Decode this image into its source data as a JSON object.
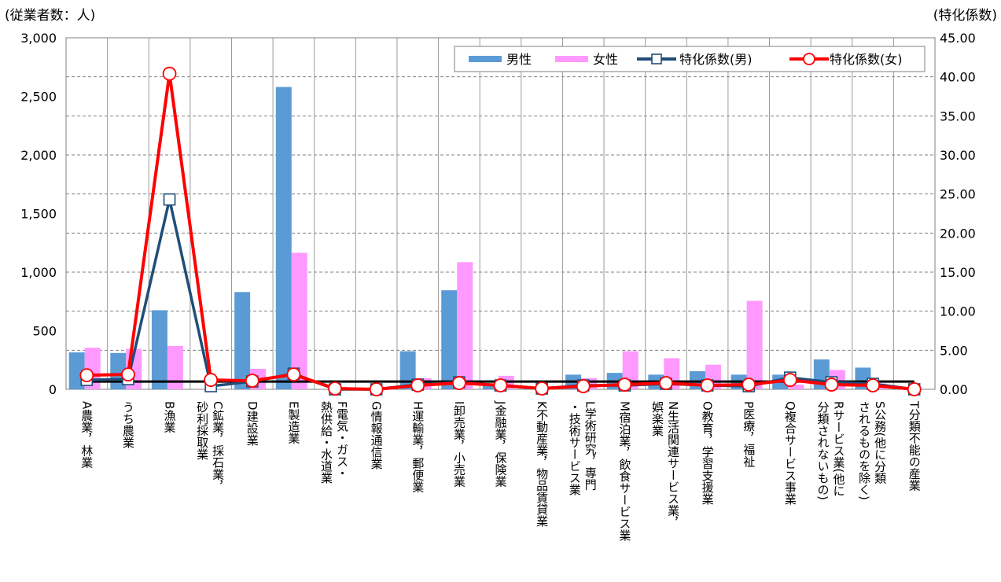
{
  "chart_data": {
    "type": "bar",
    "left_axis_title": "(従業者数：人)",
    "right_axis_title": "(特化係数)",
    "left_ticks": [
      "0",
      "500",
      "1,000",
      "1,500",
      "2,000",
      "2,500",
      "3,000"
    ],
    "right_ticks": [
      "0.00",
      "5.00",
      "10.00",
      "15.00",
      "20.00",
      "25.00",
      "30.00",
      "35.00",
      "40.00",
      "45.00"
    ],
    "ylim_left": [
      0,
      3000
    ],
    "ylim_right": [
      0,
      45
    ],
    "grid": true,
    "legend_position": "top-right",
    "categories": [
      [
        "A農業，林業"
      ],
      [
        "うち農業"
      ],
      [
        "B漁業"
      ],
      [
        "C鉱業，採石業，",
        "砂利採取業"
      ],
      [
        "D建設業"
      ],
      [
        "E製造業"
      ],
      [
        "F電気・ガス・",
        "熱供給・水道業"
      ],
      [
        "G情報通信業"
      ],
      [
        "H運輸業，郵便業"
      ],
      [
        "I卸売業，小売業"
      ],
      [
        "J金融業，保険業"
      ],
      [
        "K不動産業，物品賃貸業"
      ],
      [
        "L学術研究，専門",
        "・技術サービス業"
      ],
      [
        "M宿泊業，飲食サービス業"
      ],
      [
        "N生活関連サービス業，",
        "娯楽業"
      ],
      [
        "O教育，学習支援業"
      ],
      [
        "P医療，福祉"
      ],
      [
        "Q複合サービス事業"
      ],
      [
        "Rサービス業(他に",
        "分類されないもの)"
      ],
      [
        "S公務(他に分類",
        "されるものを除く)"
      ],
      [
        "T分類不能の産業"
      ]
    ],
    "series": [
      {
        "name": "男性",
        "kind": "bar",
        "axis": "left",
        "color": "#5b9bd5",
        "values": [
          315,
          310,
          675,
          0,
          830,
          2580,
          0,
          0,
          325,
          845,
          45,
          10,
          125,
          140,
          125,
          155,
          125,
          125,
          255,
          185,
          0
        ]
      },
      {
        "name": "女性",
        "kind": "bar",
        "axis": "left",
        "color": "#ff99ff",
        "values": [
          355,
          345,
          370,
          0,
          175,
          1165,
          0,
          0,
          95,
          1085,
          115,
          5,
          95,
          325,
          265,
          210,
          755,
          40,
          165,
          50,
          0
        ]
      },
      {
        "name": "特化係数(男)",
        "kind": "line",
        "axis": "right",
        "color": "#1f4e79",
        "values": [
          1.2,
          1.3,
          24.3,
          0.4,
          1.0,
          2.0,
          0.0,
          0.0,
          0.6,
          0.9,
          0.5,
          0.1,
          0.5,
          0.5,
          0.7,
          0.5,
          0.4,
          1.5,
          0.9,
          0.7,
          0.0
        ]
      },
      {
        "name": "特化係数(女)",
        "kind": "line",
        "axis": "right",
        "color": "#ff0000",
        "values": [
          1.8,
          1.9,
          40.4,
          1.2,
          1.1,
          1.9,
          0.1,
          0.0,
          0.5,
          0.8,
          0.5,
          0.1,
          0.4,
          0.6,
          0.8,
          0.5,
          0.6,
          1.2,
          0.6,
          0.5,
          0.0
        ]
      }
    ],
    "reference_line": {
      "value": 1.0,
      "axis": "right",
      "color": "#000000"
    }
  }
}
